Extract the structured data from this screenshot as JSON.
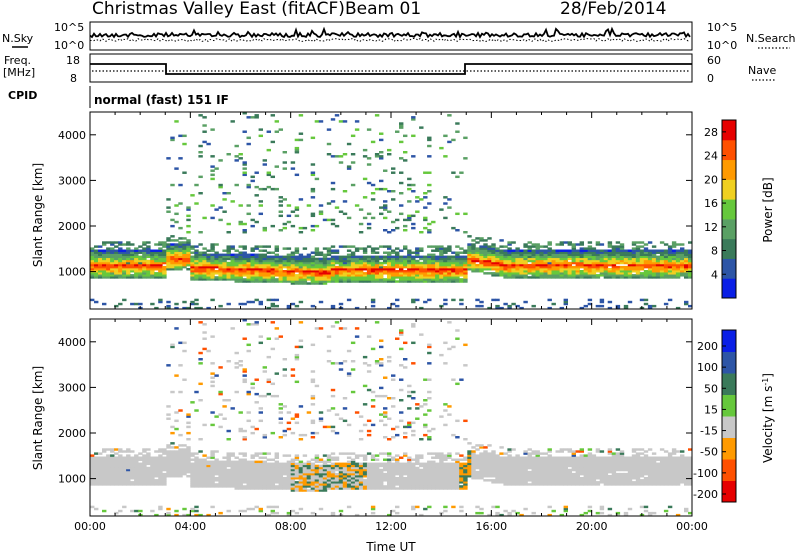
{
  "header": {
    "title": "Christmas Valley East (fitACF)",
    "beam": "Beam 01",
    "date": "28/Feb/2014"
  },
  "noise_panel": {
    "left_label": "N.Sky",
    "right_label": "N.Search",
    "left_ticks": [
      "10^5",
      "10^0"
    ],
    "right_ticks": [
      "10^5",
      "10^0"
    ]
  },
  "freq_panel": {
    "left_label_1": "Freq.",
    "left_label_2": "[MHz]",
    "right_label": "Nave",
    "left_ticks": [
      "18",
      "8"
    ],
    "right_ticks": [
      "60",
      "0"
    ]
  },
  "cpid_panel": {
    "label": "CPID",
    "text": "normal (fast) 151 IF"
  },
  "colors": {
    "power": [
      "#0a1fe6",
      "#2d55a6",
      "#3a7a5a",
      "#5aa064",
      "#66c83c",
      "#f0d020",
      "#ff9a00",
      "#ff5000",
      "#e60000"
    ],
    "velocity": [
      "#e60000",
      "#ff5000",
      "#ff9a00",
      "#c8c8c8",
      "#66c83c",
      "#3a7a5a",
      "#2d55a6",
      "#0a1fe6"
    ],
    "ground_scatter": "#c8c8c8"
  },
  "chart_data": [
    {
      "type": "heatmap",
      "name": "Power",
      "xlabel": "",
      "ylabel": "Slant Range [km]",
      "x_ticks": [
        "00:00",
        "04:00",
        "08:00",
        "12:00",
        "16:00",
        "20:00",
        "00:00"
      ],
      "xlim_hours": [
        0,
        24
      ],
      "ylim_km": [
        180,
        4500
      ],
      "y_ticks": [
        1000,
        2000,
        3000,
        4000
      ],
      "colorbar": {
        "label": "Power [dB]",
        "ticks": [
          4,
          8,
          12,
          16,
          20,
          24,
          28
        ],
        "range": [
          0,
          30
        ]
      },
      "features": [
        {
          "desc": "main echo band",
          "t_start": 0,
          "t_end": 24,
          "range_center_km": 1150,
          "range_width_km": 600,
          "value_db": 28
        },
        {
          "desc": "scattered far echoes",
          "t_start": 3,
          "t_end": 15,
          "range_min_km": 2500,
          "range_max_km": 4500,
          "value_db": 8
        }
      ]
    },
    {
      "type": "heatmap",
      "name": "Velocity",
      "xlabel": "Time UT",
      "ylabel": "Slant Range [km]",
      "x_ticks": [
        "00:00",
        "04:00",
        "08:00",
        "12:00",
        "16:00",
        "20:00",
        "00:00"
      ],
      "xlim_hours": [
        0,
        24
      ],
      "ylim_km": [
        180,
        4500
      ],
      "y_ticks": [
        1000,
        2000,
        3000,
        4000
      ],
      "colorbar": {
        "label": "Velocity [m s^-1]",
        "ticks": [
          200,
          100,
          50,
          15,
          -15,
          -50,
          -100,
          -200
        ],
        "range": [
          -250,
          250
        ]
      },
      "features": [
        {
          "desc": "ground scatter band",
          "t_start": 0,
          "t_end": 24,
          "range_center_km": 1300,
          "range_width_km": 900,
          "value_ms": 0
        },
        {
          "desc": "mixed velocities near 10:00",
          "t_start": 8,
          "t_end": 11,
          "range_min_km": 900,
          "range_max_km": 1800,
          "value_ms": -50
        }
      ]
    }
  ]
}
